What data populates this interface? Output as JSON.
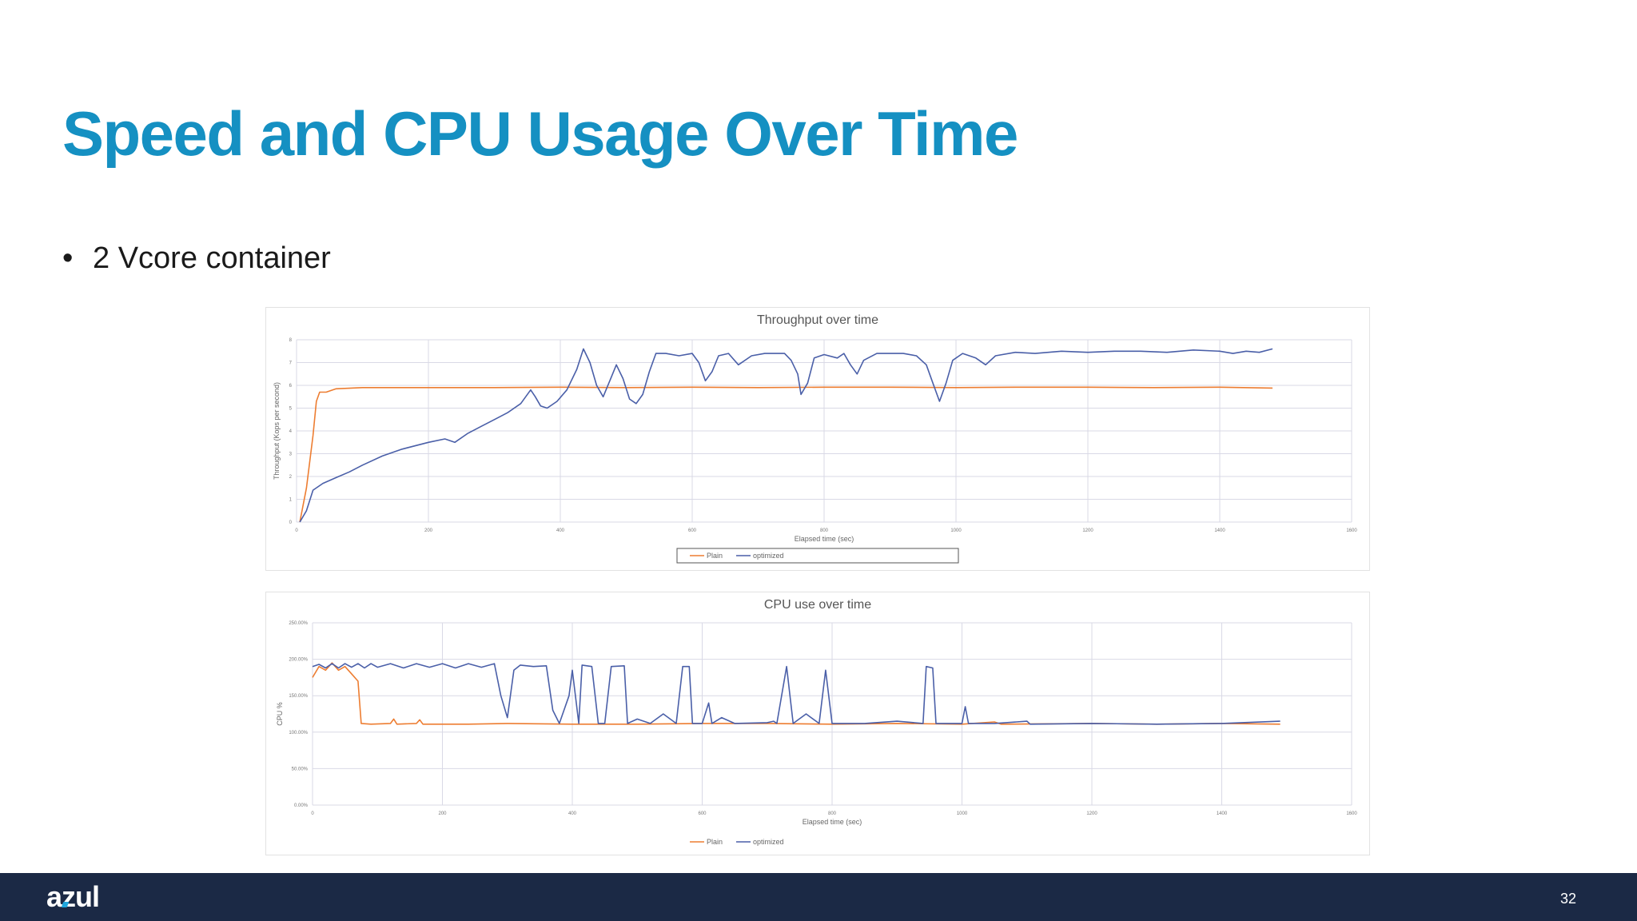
{
  "slide": {
    "title": "Speed and CPU Usage Over Time",
    "bullet": "2 Vcore container",
    "page_number": "32",
    "logo_text": "azul"
  },
  "colors": {
    "title": "#1590c2",
    "footer_bg": "#1b2945",
    "plain": "#ed7d31",
    "optimized": "#4a5fa8",
    "grid": "#d9d9e6"
  },
  "chart_data": [
    {
      "id": "throughput",
      "type": "line",
      "title": "Throughput over time",
      "xlabel": "Elapsed time (sec)",
      "ylabel": "Throughput (Kops per second)",
      "xlim": [
        0,
        1600
      ],
      "ylim": [
        0,
        8
      ],
      "xticks": [
        0,
        200,
        400,
        600,
        800,
        1000,
        1200,
        1400,
        1600
      ],
      "yticks": [
        0,
        1,
        2,
        3,
        4,
        5,
        6,
        7,
        8
      ],
      "grid": true,
      "legend_position": "bottom",
      "series": [
        {
          "name": "Plain",
          "color": "#ed7d31",
          "points": [
            [
              5,
              0
            ],
            [
              15,
              1.5
            ],
            [
              25,
              3.8
            ],
            [
              30,
              5.3
            ],
            [
              35,
              5.7
            ],
            [
              45,
              5.7
            ],
            [
              60,
              5.85
            ],
            [
              100,
              5.9
            ],
            [
              200,
              5.9
            ],
            [
              300,
              5.9
            ],
            [
              400,
              5.92
            ],
            [
              500,
              5.9
            ],
            [
              600,
              5.92
            ],
            [
              700,
              5.9
            ],
            [
              800,
              5.92
            ],
            [
              900,
              5.92
            ],
            [
              1000,
              5.9
            ],
            [
              1100,
              5.92
            ],
            [
              1200,
              5.92
            ],
            [
              1300,
              5.9
            ],
            [
              1400,
              5.92
            ],
            [
              1480,
              5.88
            ]
          ]
        },
        {
          "name": "optimized",
          "color": "#4a5fa8",
          "points": [
            [
              5,
              0
            ],
            [
              15,
              0.5
            ],
            [
              25,
              1.4
            ],
            [
              40,
              1.7
            ],
            [
              60,
              1.95
            ],
            [
              80,
              2.2
            ],
            [
              100,
              2.5
            ],
            [
              130,
              2.9
            ],
            [
              160,
              3.2
            ],
            [
              200,
              3.5
            ],
            [
              225,
              3.65
            ],
            [
              240,
              3.5
            ],
            [
              260,
              3.9
            ],
            [
              280,
              4.2
            ],
            [
              300,
              4.5
            ],
            [
              320,
              4.8
            ],
            [
              340,
              5.2
            ],
            [
              355,
              5.8
            ],
            [
              362,
              5.5
            ],
            [
              370,
              5.1
            ],
            [
              380,
              5.0
            ],
            [
              395,
              5.3
            ],
            [
              410,
              5.8
            ],
            [
              425,
              6.7
            ],
            [
              435,
              7.6
            ],
            [
              445,
              7.0
            ],
            [
              455,
              6.0
            ],
            [
              465,
              5.5
            ],
            [
              475,
              6.2
            ],
            [
              485,
              6.9
            ],
            [
              495,
              6.3
            ],
            [
              505,
              5.4
            ],
            [
              515,
              5.2
            ],
            [
              525,
              5.6
            ],
            [
              535,
              6.6
            ],
            [
              545,
              7.4
            ],
            [
              560,
              7.4
            ],
            [
              580,
              7.3
            ],
            [
              600,
              7.4
            ],
            [
              610,
              7.0
            ],
            [
              620,
              6.2
            ],
            [
              630,
              6.6
            ],
            [
              640,
              7.3
            ],
            [
              655,
              7.4
            ],
            [
              670,
              6.9
            ],
            [
              690,
              7.3
            ],
            [
              710,
              7.4
            ],
            [
              740,
              7.4
            ],
            [
              750,
              7.1
            ],
            [
              760,
              6.5
            ],
            [
              765,
              5.6
            ],
            [
              775,
              6.1
            ],
            [
              785,
              7.2
            ],
            [
              800,
              7.35
            ],
            [
              820,
              7.2
            ],
            [
              830,
              7.4
            ],
            [
              840,
              6.9
            ],
            [
              850,
              6.5
            ],
            [
              860,
              7.1
            ],
            [
              880,
              7.4
            ],
            [
              920,
              7.4
            ],
            [
              940,
              7.3
            ],
            [
              955,
              6.9
            ],
            [
              965,
              6.1
            ],
            [
              975,
              5.3
            ],
            [
              985,
              6.1
            ],
            [
              995,
              7.1
            ],
            [
              1010,
              7.4
            ],
            [
              1030,
              7.2
            ],
            [
              1045,
              6.9
            ],
            [
              1060,
              7.3
            ],
            [
              1090,
              7.45
            ],
            [
              1120,
              7.4
            ],
            [
              1160,
              7.5
            ],
            [
              1200,
              7.45
            ],
            [
              1240,
              7.5
            ],
            [
              1280,
              7.5
            ],
            [
              1320,
              7.45
            ],
            [
              1360,
              7.55
            ],
            [
              1400,
              7.5
            ],
            [
              1420,
              7.4
            ],
            [
              1440,
              7.5
            ],
            [
              1460,
              7.45
            ],
            [
              1480,
              7.6
            ]
          ]
        }
      ]
    },
    {
      "id": "cpu",
      "type": "line",
      "title": "CPU use over time",
      "xlabel": "Elapsed time (sec)",
      "ylabel": "CPU %",
      "xlim": [
        0,
        1600
      ],
      "ylim": [
        0,
        250
      ],
      "xticks": [
        0,
        200,
        400,
        600,
        800,
        1000,
        1200,
        1400,
        1600
      ],
      "yticks": [
        0,
        50,
        100,
        150,
        200,
        250
      ],
      "ytick_labels": [
        "0.00%",
        "50.00%",
        "100.00%",
        "150.00%",
        "200.00%",
        "250.00%"
      ],
      "grid": true,
      "legend_position": "bottom",
      "series": [
        {
          "name": "Plain",
          "color": "#ed7d31",
          "points": [
            [
              0,
              175
            ],
            [
              10,
              190
            ],
            [
              20,
              185
            ],
            [
              30,
              195
            ],
            [
              40,
              185
            ],
            [
              50,
              190
            ],
            [
              60,
              180
            ],
            [
              70,
              170
            ],
            [
              75,
              112
            ],
            [
              90,
              111
            ],
            [
              120,
              112
            ],
            [
              125,
              118
            ],
            [
              130,
              111
            ],
            [
              160,
              112
            ],
            [
              165,
              117
            ],
            [
              170,
              111
            ],
            [
              240,
              111
            ],
            [
              300,
              112
            ],
            [
              400,
              111
            ],
            [
              500,
              111
            ],
            [
              600,
              112
            ],
            [
              700,
              112
            ],
            [
              800,
              111
            ],
            [
              900,
              112
            ],
            [
              1000,
              111
            ],
            [
              1050,
              114
            ],
            [
              1060,
              111
            ],
            [
              1200,
              112
            ],
            [
              1300,
              111
            ],
            [
              1400,
              112
            ],
            [
              1490,
              111
            ]
          ]
        },
        {
          "name": "optimized",
          "color": "#4a5fa8",
          "points": [
            [
              0,
              190
            ],
            [
              10,
              193
            ],
            [
              20,
              188
            ],
            [
              30,
              194
            ],
            [
              40,
              188
            ],
            [
              50,
              194
            ],
            [
              60,
              189
            ],
            [
              70,
              194
            ],
            [
              80,
              188
            ],
            [
              90,
              194
            ],
            [
              100,
              189
            ],
            [
              120,
              194
            ],
            [
              140,
              188
            ],
            [
              160,
              194
            ],
            [
              180,
              189
            ],
            [
              200,
              194
            ],
            [
              220,
              188
            ],
            [
              240,
              194
            ],
            [
              260,
              189
            ],
            [
              280,
              194
            ],
            [
              290,
              150
            ],
            [
              300,
              120
            ],
            [
              310,
              185
            ],
            [
              320,
              192
            ],
            [
              340,
              190
            ],
            [
              360,
              191
            ],
            [
              370,
              130
            ],
            [
              380,
              112
            ],
            [
              395,
              150
            ],
            [
              400,
              185
            ],
            [
              410,
              112
            ],
            [
              415,
              192
            ],
            [
              430,
              190
            ],
            [
              440,
              112
            ],
            [
              450,
              112
            ],
            [
              460,
              190
            ],
            [
              480,
              191
            ],
            [
              485,
              112
            ],
            [
              500,
              118
            ],
            [
              520,
              112
            ],
            [
              540,
              125
            ],
            [
              560,
              112
            ],
            [
              570,
              190
            ],
            [
              580,
              190
            ],
            [
              585,
              112
            ],
            [
              600,
              112
            ],
            [
              610,
              140
            ],
            [
              615,
              112
            ],
            [
              630,
              120
            ],
            [
              650,
              112
            ],
            [
              700,
              113
            ],
            [
              710,
              115
            ],
            [
              715,
              112
            ],
            [
              730,
              190
            ],
            [
              740,
              112
            ],
            [
              760,
              125
            ],
            [
              780,
              112
            ],
            [
              790,
              185
            ],
            [
              800,
              112
            ],
            [
              850,
              112
            ],
            [
              900,
              115
            ],
            [
              940,
              112
            ],
            [
              945,
              190
            ],
            [
              955,
              188
            ],
            [
              960,
              112
            ],
            [
              1000,
              112
            ],
            [
              1005,
              135
            ],
            [
              1010,
              112
            ],
            [
              1050,
              112
            ],
            [
              1100,
              115
            ],
            [
              1105,
              111
            ],
            [
              1200,
              112
            ],
            [
              1300,
              111
            ],
            [
              1400,
              112
            ],
            [
              1490,
              115
            ]
          ]
        }
      ]
    }
  ]
}
